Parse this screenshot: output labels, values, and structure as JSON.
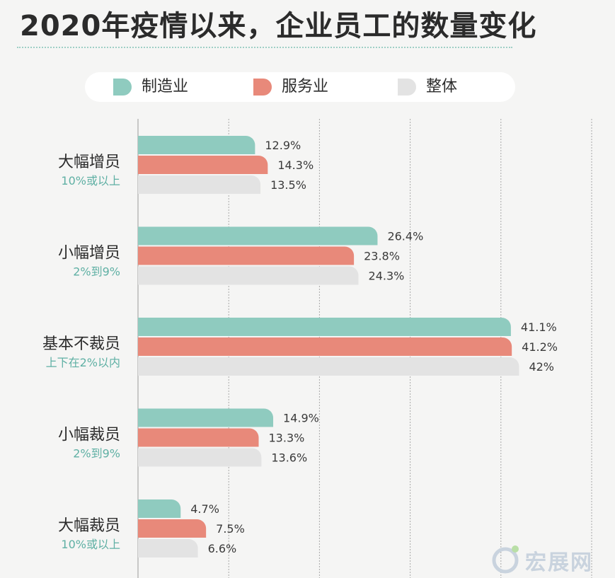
{
  "title": "2020年疫情以来，企业员工的数量变化",
  "legend": [
    {
      "label": "制造业",
      "color": "#8fcbbf"
    },
    {
      "label": "服务业",
      "color": "#e8897a"
    },
    {
      "label": "整体",
      "color": "#e3e3e3"
    }
  ],
  "chart_data": {
    "type": "bar",
    "orientation": "horizontal",
    "title": "2020年疫情以来，企业员工的数量变化",
    "categories": [
      {
        "label": "大幅增员",
        "sublabel": "10%或以上"
      },
      {
        "label": "小幅增员",
        "sublabel": "2%到9%"
      },
      {
        "label": "基本不裁员",
        "sublabel": "上下在2%以内"
      },
      {
        "label": "小幅裁员",
        "sublabel": "2%到9%"
      },
      {
        "label": "大幅裁员",
        "sublabel": "10%或以上"
      }
    ],
    "series": [
      {
        "name": "制造业",
        "color": "#8fcbbf",
        "values": [
          12.9,
          26.4,
          41.1,
          14.9,
          4.7
        ],
        "labels": [
          "12.9%",
          "26.4%",
          "41.1%",
          "14.9%",
          "4.7%"
        ]
      },
      {
        "name": "服务业",
        "color": "#e8897a",
        "values": [
          14.3,
          23.8,
          41.2,
          13.3,
          7.5
        ],
        "labels": [
          "14.3%",
          "23.8%",
          "41.2%",
          "13.3%",
          "7.5%"
        ]
      },
      {
        "name": "整体",
        "color": "#e3e3e3",
        "values": [
          13.5,
          24.3,
          42,
          13.6,
          6.6
        ],
        "labels": [
          "13.5%",
          "24.3%",
          "42%",
          "13.6%",
          "6.6%"
        ]
      }
    ],
    "xlim": [
      0,
      50
    ],
    "grid": true,
    "legend_position": "top"
  },
  "watermark": "宏展网"
}
